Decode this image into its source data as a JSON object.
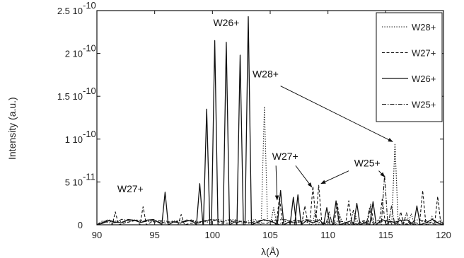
{
  "chart_data": {
    "type": "line",
    "xlabel": "λ(Å)",
    "ylabel": "Intensity (a.u.)",
    "xlim": [
      90,
      120
    ],
    "ylim": [
      0,
      2.5e-10
    ],
    "x_ticks": [
      "90",
      "95",
      "100",
      "105",
      "110",
      "115",
      "120"
    ],
    "y_ticks": [
      "0",
      "5 10-11",
      "1 10-10",
      "1.5 10-10",
      "2 10-10",
      "2.5 10-10"
    ],
    "y_tick_parts": [
      {
        "mant": "0",
        "exp": ""
      },
      {
        "mant": "5 10",
        "exp": "-11"
      },
      {
        "mant": "1 10",
        "exp": "-10"
      },
      {
        "mant": "1.5 10",
        "exp": "-10"
      },
      {
        "mant": "2 10",
        "exp": "-10"
      },
      {
        "mant": "2.5 10",
        "exp": "-10"
      }
    ],
    "legend_position": "top-right",
    "series": [
      {
        "name": "W28+",
        "style": "dotted",
        "peaks": [
          [
            104.5,
            1.38e-10
          ],
          [
            105.3,
            2e-11
          ],
          [
            108.9,
            1.5e-11
          ],
          [
            111.0,
            1.2e-11
          ],
          [
            112.4,
            1e-11
          ],
          [
            115.8,
            9.5e-11
          ],
          [
            117.2,
            1.3e-11
          ],
          [
            119.0,
            1e-11
          ]
        ]
      },
      {
        "name": "W27+",
        "style": "dashed",
        "peaks": [
          [
            91.6,
            1.5e-11
          ],
          [
            94.0,
            2.1e-11
          ],
          [
            97.3,
            1.2e-11
          ],
          [
            105.8,
            3.2e-11
          ],
          [
            108.0,
            2.2e-11
          ],
          [
            108.7,
            4.5e-11
          ],
          [
            109.2,
            4.6e-11
          ],
          [
            110.8,
            2.5e-11
          ],
          [
            111.8,
            2.8e-11
          ],
          [
            113.7,
            2.4e-11
          ],
          [
            114.7,
            3e-11
          ],
          [
            116.3,
            1.5e-11
          ],
          [
            118.2,
            4e-11
          ],
          [
            119.5,
            3.3e-11
          ]
        ]
      },
      {
        "name": "W26+",
        "style": "solid",
        "peaks": [
          [
            95.9,
            3.8e-11
          ],
          [
            98.9,
            4.8e-11
          ],
          [
            99.5,
            1.35e-10
          ],
          [
            100.2,
            2.15e-10
          ],
          [
            101.2,
            2.13e-10
          ],
          [
            102.4,
            1.98e-10
          ],
          [
            103.1,
            2.43e-10
          ],
          [
            105.9,
            4e-11
          ],
          [
            107.0,
            3.2e-11
          ],
          [
            107.4,
            3.5e-11
          ],
          [
            109.9,
            2e-11
          ],
          [
            110.7,
            2.8e-11
          ],
          [
            112.5,
            2.5e-11
          ],
          [
            113.9,
            2.7e-11
          ],
          [
            117.7,
            2.2e-11
          ]
        ]
      },
      {
        "name": "W25+",
        "style": "dash-dot",
        "peaks": [
          [
            110.1,
            1.5e-11
          ],
          [
            112.2,
            1.7e-11
          ],
          [
            113.6,
            2e-11
          ],
          [
            114.9,
            5.8e-11
          ],
          [
            115.5,
            2.2e-11
          ],
          [
            116.8,
            1.4e-11
          ]
        ]
      }
    ],
    "annotations": [
      {
        "text": "W26+",
        "x": 101.2,
        "y": 2.32e-10
      },
      {
        "text": "W28+",
        "x": 104.6,
        "y": 1.72e-10
      },
      {
        "text": "W27+",
        "x": 106.3,
        "y": 7.6e-11
      },
      {
        "text": "W25+",
        "x": 113.4,
        "y": 6.8e-11
      },
      {
        "text": "W27+",
        "x": 92.9,
        "y": 3.8e-11
      }
    ],
    "arrows": [
      {
        "from": [
          105.9,
          1.62e-10
        ],
        "to": [
          115.6,
          9.7e-11
        ]
      },
      {
        "from": [
          105.5,
          6.9e-11
        ],
        "to": [
          105.6,
          2.9e-11
        ]
      },
      {
        "from": [
          107.2,
          6.9e-11
        ],
        "to": [
          108.6,
          4.4e-11
        ]
      },
      {
        "from": [
          111.8,
          6.3e-11
        ],
        "to": [
          109.4,
          4.8e-11
        ]
      },
      {
        "from": [
          114.4,
          6.3e-11
        ],
        "to": [
          114.9,
          5.6e-11
        ]
      }
    ]
  }
}
